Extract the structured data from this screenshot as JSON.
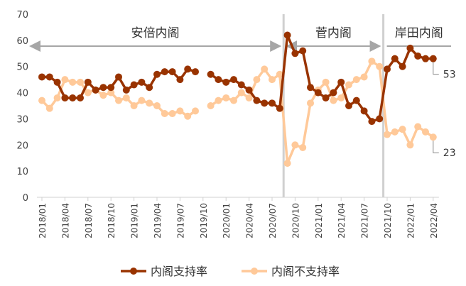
{
  "chart_data": {
    "type": "line",
    "ylim": [
      0,
      70
    ],
    "yticks": [
      0,
      10,
      20,
      30,
      40,
      50,
      60,
      70
    ],
    "grid": false,
    "legend_position": "bottom",
    "x_tick_labels": [
      "2018/01",
      "2018/04",
      "2018/07",
      "2018/10",
      "2019/01",
      "2019/04",
      "2019/07",
      "2019/10",
      "2020/01",
      "2020/04",
      "2020/07",
      "2020/10",
      "2021/01",
      "2021/04",
      "2021/07",
      "2021/10",
      "2022/01",
      "2022/04"
    ],
    "x_start": "2018/01",
    "x_end": "2022/04",
    "periods": [
      {
        "label": "安倍内阁",
        "start": "2018/01",
        "end": "2020/08"
      },
      {
        "label": "菅内阁",
        "start": "2020/09",
        "end": "2021/09"
      },
      {
        "label": "岸田内阁",
        "start": "2021/10",
        "end": "2022/04"
      }
    ],
    "series": [
      {
        "name": "内阁支持率",
        "color": "#993300",
        "values": [
          46,
          46,
          44,
          38,
          38,
          38,
          44,
          41,
          42,
          42,
          46,
          41,
          43,
          44,
          42,
          47,
          48,
          48,
          45,
          49,
          48,
          null,
          47,
          45,
          44,
          45,
          43,
          41,
          37,
          36,
          36,
          34,
          62,
          55,
          56,
          42,
          40,
          38,
          40,
          44,
          35,
          37,
          33,
          29,
          30,
          49,
          53,
          50,
          57,
          54,
          53,
          53
        ],
        "end_label": "53"
      },
      {
        "name": "内阁不支持率",
        "color": "#FFC999",
        "values": [
          37,
          34,
          38,
          45,
          44,
          44,
          40,
          41,
          39,
          40,
          37,
          38,
          35,
          37,
          36,
          35,
          32,
          32,
          33,
          31,
          33,
          null,
          35,
          37,
          38,
          37,
          40,
          38,
          45,
          49,
          45,
          47,
          13,
          20,
          19,
          36,
          41,
          44,
          37,
          38,
          43,
          45,
          46,
          52,
          50,
          24,
          25,
          26,
          20,
          27,
          25,
          23
        ],
        "end_label": "23"
      }
    ]
  }
}
